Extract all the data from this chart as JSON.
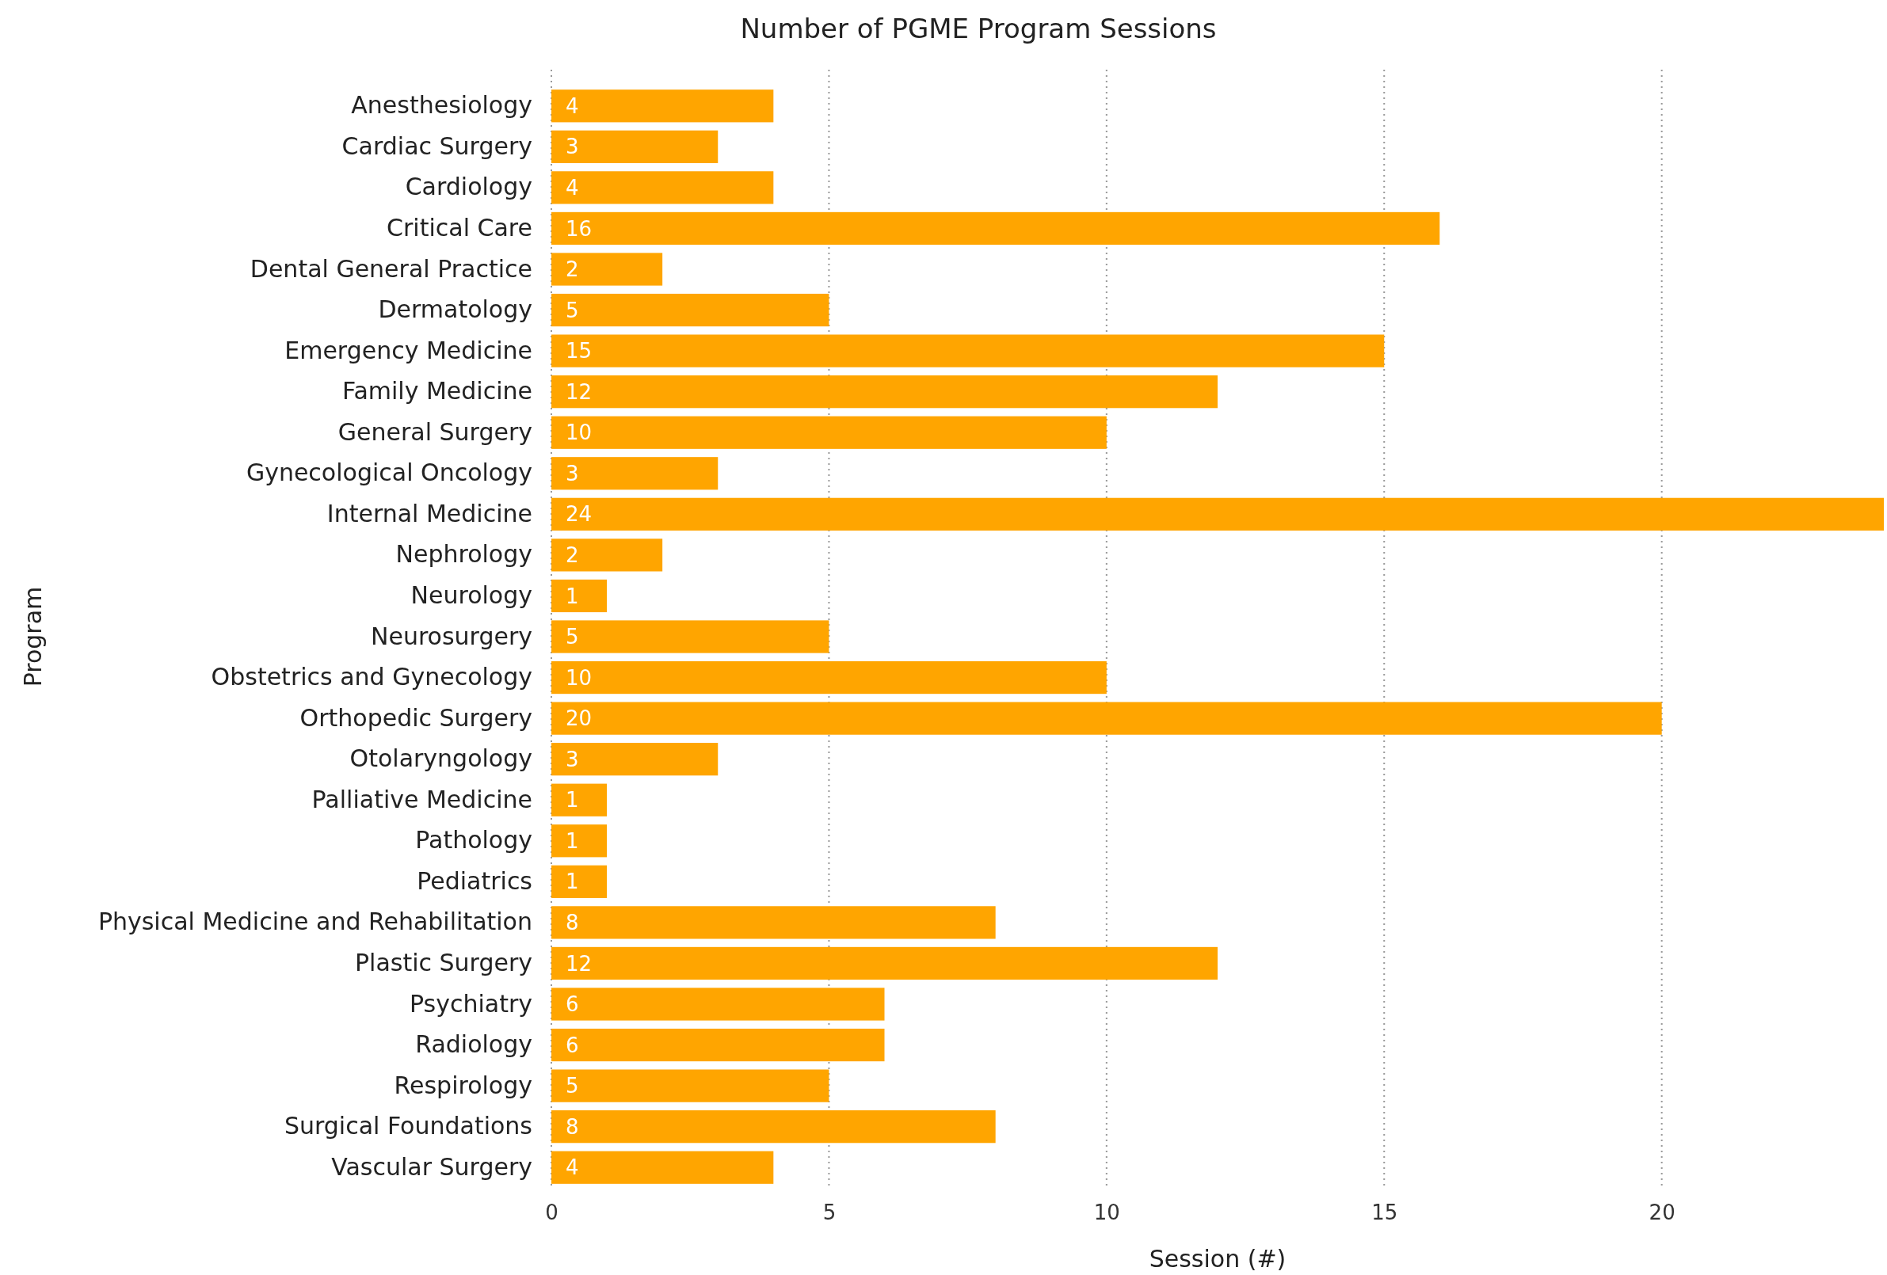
{
  "chart_data": {
    "type": "bar",
    "orientation": "horizontal",
    "title": "Number of PGME Program Sessions",
    "xlabel": "Session (#)",
    "ylabel": "Program",
    "categories": [
      "Anesthesiology",
      "Cardiac Surgery",
      "Cardiology",
      "Critical Care",
      "Dental General Practice",
      "Dermatology",
      "Emergency Medicine",
      "Family Medicine",
      "General Surgery",
      "Gynecological Oncology",
      "Internal Medicine",
      "Nephrology",
      "Neurology",
      "Neurosurgery",
      "Obstetrics and Gynecology",
      "Orthopedic Surgery",
      "Otolaryngology",
      "Palliative Medicine",
      "Pathology",
      "Pediatrics",
      "Physical Medicine and Rehabilitation",
      "Plastic Surgery",
      "Psychiatry",
      "Radiology",
      "Respirology",
      "Surgical Foundations",
      "Vascular Surgery"
    ],
    "values": [
      4,
      3,
      4,
      16,
      2,
      5,
      15,
      12,
      10,
      3,
      24,
      2,
      1,
      5,
      10,
      20,
      3,
      1,
      1,
      1,
      8,
      12,
      6,
      6,
      5,
      8,
      4
    ],
    "color": "#ffa500",
    "xlim": [
      0,
      24
    ],
    "xticks": [
      0,
      5,
      10,
      15,
      20
    ],
    "grid": "x",
    "data_labels": true
  }
}
